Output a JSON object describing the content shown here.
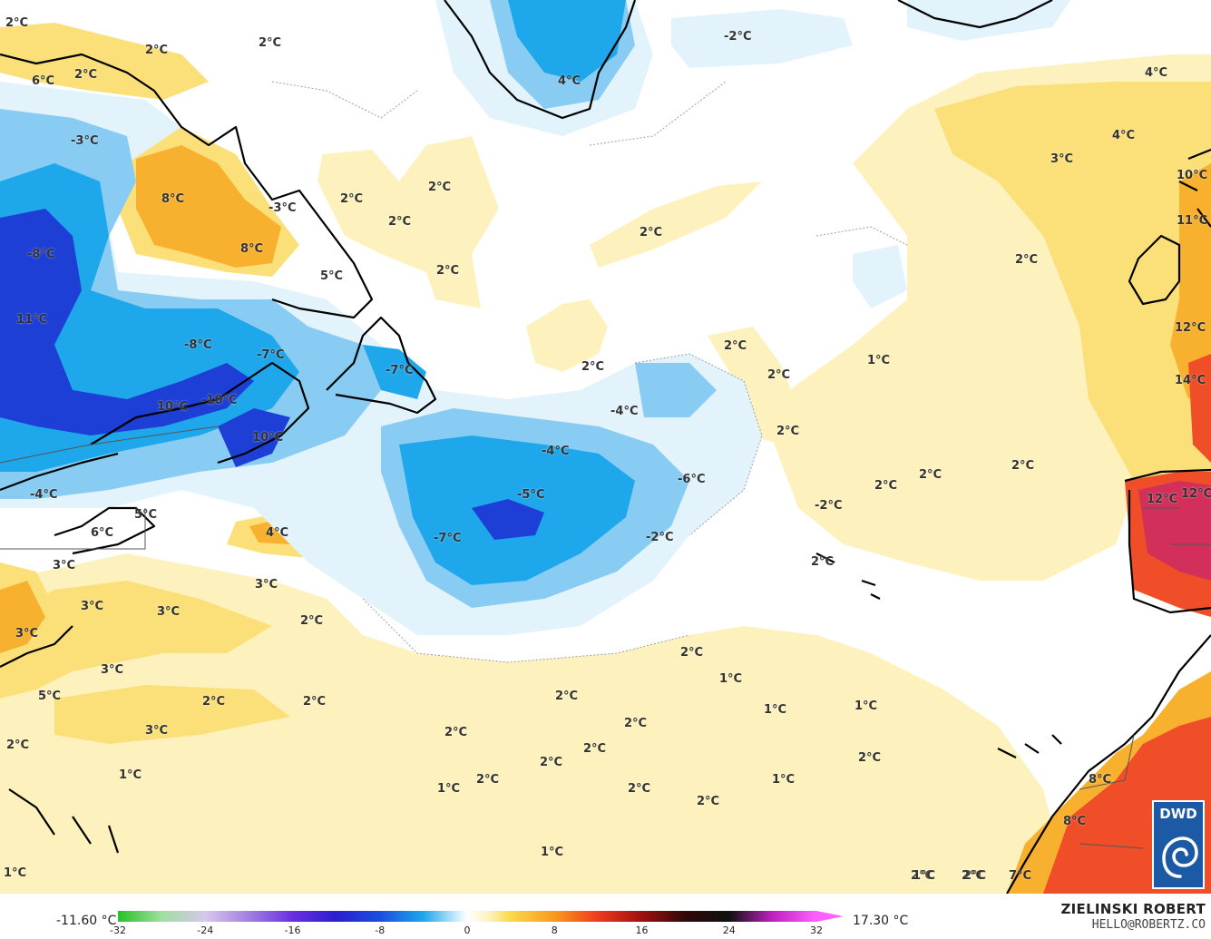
{
  "map": {
    "colors": {
      "sea_neutral": "#ffffff",
      "warm_light": "#fdf2bd",
      "warm_mid": "#fbe07a",
      "warm_orange": "#f8b12e",
      "warm_red": "#ef4e28",
      "hot_magenta": "#d2305a",
      "cold_light": "#e2f3fc",
      "cold_mid": "#88ccf3",
      "cold_blue": "#1fa7eb",
      "cold_deep": "#1e3fd5",
      "coast": "#000000",
      "contour": "#9aa0a6"
    },
    "labels": [
      {
        "text": "2°C"
      },
      {
        "text": "2°C"
      },
      {
        "text": "2°C"
      },
      {
        "text": "6°C"
      },
      {
        "text": "2°C"
      },
      {
        "text": "-3°C"
      },
      {
        "text": "8°C"
      },
      {
        "text": "-3°C"
      },
      {
        "text": "8°C"
      },
      {
        "text": "5°C"
      },
      {
        "text": "-8°C"
      },
      {
        "text": "11°C"
      },
      {
        "text": "-8°C"
      },
      {
        "text": "-7°C"
      },
      {
        "text": "-7°C"
      },
      {
        "text": "10°C"
      },
      {
        "text": "-10°C"
      },
      {
        "text": "10°C"
      },
      {
        "text": "4°C"
      },
      {
        "text": "4°C"
      },
      {
        "text": "-4°C"
      },
      {
        "text": "5°C"
      },
      {
        "text": "6°C"
      },
      {
        "text": "3°C"
      },
      {
        "text": "4°C"
      },
      {
        "text": "3°C"
      },
      {
        "text": "3°C"
      },
      {
        "text": "3°C"
      },
      {
        "text": "5°C"
      },
      {
        "text": "3°C"
      },
      {
        "text": "2°C"
      },
      {
        "text": "3°C"
      },
      {
        "text": "2°C"
      },
      {
        "text": "2°C"
      },
      {
        "text": "3°C"
      },
      {
        "text": "2°C"
      },
      {
        "text": "1°C"
      },
      {
        "text": "1°C"
      },
      {
        "text": "2°C"
      },
      {
        "text": "2°C"
      },
      {
        "text": "2°C"
      },
      {
        "text": "2°C"
      },
      {
        "text": "2°C"
      },
      {
        "text": "2°C"
      },
      {
        "text": "-2°C"
      },
      {
        "text": "-4°C"
      },
      {
        "text": "2°C"
      },
      {
        "text": "2°C"
      },
      {
        "text": "2°C"
      },
      {
        "text": "2°C"
      },
      {
        "text": "-4°C"
      },
      {
        "text": "-5°C"
      },
      {
        "text": "-7°C"
      },
      {
        "text": "-6°C"
      },
      {
        "text": "-2°C"
      },
      {
        "text": "-2°C"
      },
      {
        "text": "2°C"
      },
      {
        "text": "2°C"
      },
      {
        "text": "2°C"
      },
      {
        "text": "2°C"
      },
      {
        "text": "1°C"
      },
      {
        "text": "2°C"
      },
      {
        "text": "2°C"
      },
      {
        "text": "2°C"
      },
      {
        "text": "2°C"
      },
      {
        "text": "2°C"
      },
      {
        "text": "2°C"
      },
      {
        "text": "2°C"
      },
      {
        "text": "4°C"
      },
      {
        "text": "3°C"
      },
      {
        "text": "2°C"
      },
      {
        "text": "10°C"
      },
      {
        "text": "11°C"
      },
      {
        "text": "12°C"
      },
      {
        "text": "14°C"
      },
      {
        "text": "12°C"
      },
      {
        "text": "12°C"
      },
      {
        "text": "2°C"
      },
      {
        "text": "1°C"
      },
      {
        "text": "1°C"
      },
      {
        "text": "1°C"
      },
      {
        "text": "2°C"
      },
      {
        "text": "2°C"
      },
      {
        "text": "1°C"
      },
      {
        "text": "2°C"
      },
      {
        "text": "1°C"
      },
      {
        "text": "1°C"
      },
      {
        "text": "2°C"
      },
      {
        "text": "8°C"
      },
      {
        "text": "8°C"
      },
      {
        "text": "7°C"
      },
      {
        "text": "1°C"
      }
    ]
  },
  "scale": {
    "min_label": "-11.60 °C",
    "max_label": "17.30 °C",
    "ticks": [
      "-32",
      "-24",
      "-16",
      "-8",
      "0",
      "8",
      "16",
      "24",
      "32"
    ],
    "tick_values": [
      -32,
      -24,
      -16,
      -8,
      0,
      8,
      16,
      24,
      32
    ],
    "stops": [
      {
        "value": -32,
        "color": "#26c226"
      },
      {
        "value": -28,
        "color": "#9fdf9f"
      },
      {
        "value": -24,
        "color": "#d7c7ec"
      },
      {
        "value": -20,
        "color": "#a27fe0"
      },
      {
        "value": -16,
        "color": "#6a2fe0"
      },
      {
        "value": -12,
        "color": "#2a1fd0"
      },
      {
        "value": -8,
        "color": "#1a4ee0"
      },
      {
        "value": -4,
        "color": "#1fa7eb"
      },
      {
        "value": -1,
        "color": "#c9ebfb"
      },
      {
        "value": 0,
        "color": "#ffffff"
      },
      {
        "value": 2,
        "color": "#fdf2bd"
      },
      {
        "value": 4,
        "color": "#fbd84a"
      },
      {
        "value": 8,
        "color": "#f89a1c"
      },
      {
        "value": 12,
        "color": "#ee3a1e"
      },
      {
        "value": 16,
        "color": "#a01010"
      },
      {
        "value": 20,
        "color": "#300808"
      },
      {
        "value": 24,
        "color": "#101010"
      },
      {
        "value": 28,
        "color": "#c020c0"
      },
      {
        "value": 32,
        "color": "#ff60ff"
      }
    ]
  },
  "author": {
    "name": "ZIELINSKI ROBERT",
    "email": "HELLO@ROBERTZ.CO"
  },
  "logo": {
    "text": "DWD",
    "color": "#1d5aa6"
  }
}
